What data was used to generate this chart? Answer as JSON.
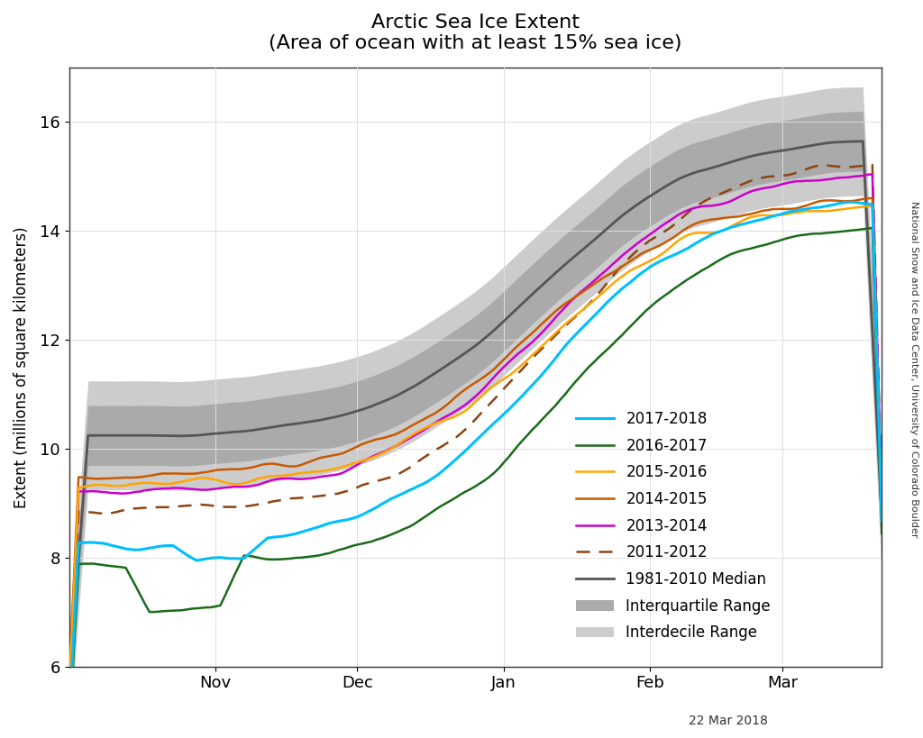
{
  "title_line1": "Arctic Sea Ice Extent",
  "title_line2": "(Area of ocean with at least 15% sea ice)",
  "ylabel": "Extent (millions of square kilometers)",
  "date_label": "22 Mar 2018",
  "credit_text": "National Snow and Ice Data Center, University of Colorado Boulder",
  "ylim": [
    6,
    17
  ],
  "yticks": [
    6,
    8,
    10,
    12,
    14,
    16
  ],
  "xtick_labels": [
    "Nov",
    "Dec",
    "Jan",
    "Feb",
    "Mar"
  ],
  "colors": {
    "2017-2018": "#00BFFF",
    "2016-2017": "#1A6B1A",
    "2015-2016": "#FFA500",
    "2014-2015": "#C85A00",
    "2013-2014": "#CC00CC",
    "2011-2012": "#8B4513",
    "median": "#555555",
    "interquartile": "#AAAAAA",
    "interdecile": "#CCCCCC"
  },
  "background_color": "#FFFFFF"
}
